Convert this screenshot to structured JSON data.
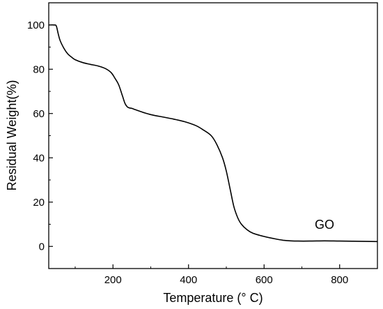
{
  "chart_data": {
    "type": "line",
    "title": "",
    "xlabel": "Temperature (° C)",
    "ylabel": "Residual Weight(%)",
    "xlim": [
      30,
      900
    ],
    "ylim": [
      -10,
      110
    ],
    "x_ticks": [
      200,
      400,
      600,
      800
    ],
    "y_ticks": [
      0,
      20,
      40,
      60,
      80,
      100
    ],
    "grid": false,
    "annotations": [
      {
        "text": "GO",
        "x": 760,
        "y": 8
      }
    ],
    "series": [
      {
        "x": [
          30,
          45,
          50,
          55,
          60,
          70,
          80,
          90,
          100,
          120,
          140,
          160,
          180,
          195,
          205,
          215,
          225,
          232,
          238,
          244,
          250,
          260,
          280,
          300,
          330,
          360,
          390,
          420,
          440,
          460,
          475,
          490,
          500,
          510,
          520,
          530,
          540,
          555,
          570,
          600,
          630,
          650,
          670,
          690,
          720,
          760,
          800,
          850,
          900
        ],
        "y": [
          100,
          100,
          99.5,
          96,
          93,
          89.5,
          87,
          85.5,
          84.3,
          83,
          82.2,
          81.5,
          80.3,
          78.5,
          76,
          73,
          68,
          64.5,
          63,
          62.5,
          62.3,
          61.7,
          60.5,
          59.5,
          58.5,
          57.5,
          56.3,
          54.5,
          52.5,
          50,
          46,
          40,
          34,
          26,
          18,
          13,
          10,
          7.5,
          6,
          4.5,
          3.4,
          2.8,
          2.5,
          2.4,
          2.4,
          2.5,
          2.4,
          2.3,
          2.2
        ]
      }
    ]
  }
}
